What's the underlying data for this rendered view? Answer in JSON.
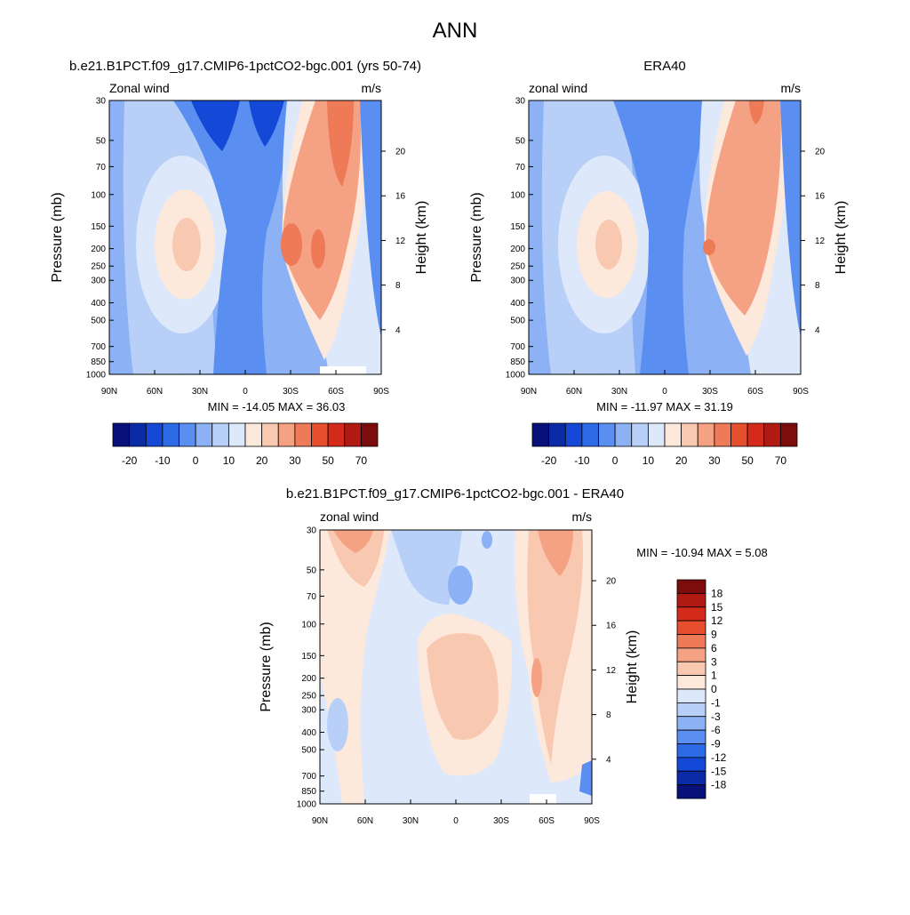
{
  "figure": {
    "title": "ANN"
  },
  "chart_data": [
    {
      "type": "heatmap",
      "title": "b.e21.B1PCT.f09_g17.CMIP6-1pctCO2-bgc.001 (yrs 50-74)",
      "left_label": "Zonal wind",
      "right_label": "m/s",
      "xlabel": "",
      "ylabel": "Pressure (mb)",
      "ylabel_right": "Height (km)",
      "x_ticks": [
        "90N",
        "60N",
        "30N",
        "0",
        "30S",
        "60S",
        "90S"
      ],
      "y_ticks": [
        "30",
        "50",
        "70",
        "100",
        "150",
        "200",
        "250",
        "300",
        "400",
        "500",
        "700",
        "850",
        "1000"
      ],
      "height_ticks": [
        "4",
        "8",
        "12",
        "16",
        "20"
      ],
      "stats": "MIN = -14.05  MAX =  36.03",
      "colorbar_labels": [
        "-20",
        "-10",
        "0",
        "10",
        "20",
        "30",
        "50",
        "70"
      ]
    },
    {
      "type": "heatmap",
      "title": "ERA40",
      "left_label": "zonal wind",
      "right_label": "m/s",
      "xlabel": "",
      "ylabel": "Pressure (mb)",
      "ylabel_right": "Height (km)",
      "x_ticks": [
        "90N",
        "60N",
        "30N",
        "0",
        "30S",
        "60S",
        "90S"
      ],
      "y_ticks": [
        "30",
        "50",
        "70",
        "100",
        "150",
        "200",
        "250",
        "300",
        "400",
        "500",
        "700",
        "850",
        "1000"
      ],
      "height_ticks": [
        "4",
        "8",
        "12",
        "16",
        "20"
      ],
      "stats": "MIN = -11.97  MAX =  31.19",
      "colorbar_labels": [
        "-20",
        "-10",
        "0",
        "10",
        "20",
        "30",
        "50",
        "70"
      ]
    },
    {
      "type": "heatmap",
      "title": "b.e21.B1PCT.f09_g17.CMIP6-1pctCO2-bgc.001 - ERA40",
      "left_label": "zonal wind",
      "right_label": "m/s",
      "xlabel": "",
      "ylabel": "Pressure (mb)",
      "ylabel_right": "Height (km)",
      "x_ticks": [
        "90N",
        "60N",
        "30N",
        "0",
        "30S",
        "60S",
        "90S"
      ],
      "y_ticks": [
        "30",
        "50",
        "70",
        "100",
        "150",
        "200",
        "250",
        "300",
        "400",
        "500",
        "700",
        "850",
        "1000"
      ],
      "height_ticks": [
        "4",
        "8",
        "12",
        "16",
        "20"
      ],
      "stats": "MIN = -10.94  MAX =   5.08",
      "colorbar_labels": [
        "18",
        "15",
        "12",
        "9",
        "6",
        "3",
        "1",
        "0",
        "-1",
        "-3",
        "-6",
        "-9",
        "-12",
        "-15",
        "-18"
      ]
    }
  ],
  "colors": {
    "abs_scale": [
      "#08107a",
      "#0b2aa6",
      "#1448d6",
      "#2d6be6",
      "#5a8ef0",
      "#8cb2f5",
      "#b8d0f8",
      "#dde9fb",
      "#fde8dc",
      "#f9c8b0",
      "#f4a283",
      "#ee7a57",
      "#e64e2e",
      "#d42a1b",
      "#b01a13",
      "#7d0c0c"
    ],
    "diff_scale": [
      "#7d0c0c",
      "#b01a13",
      "#d42a1b",
      "#e64e2e",
      "#ee7a57",
      "#f4a283",
      "#f9c8b0",
      "#fde8dc",
      "#dde9fb",
      "#b8d0f8",
      "#8cb2f5",
      "#5a8ef0",
      "#2d6be6",
      "#1448d6",
      "#0b2aa6",
      "#08107a"
    ]
  }
}
